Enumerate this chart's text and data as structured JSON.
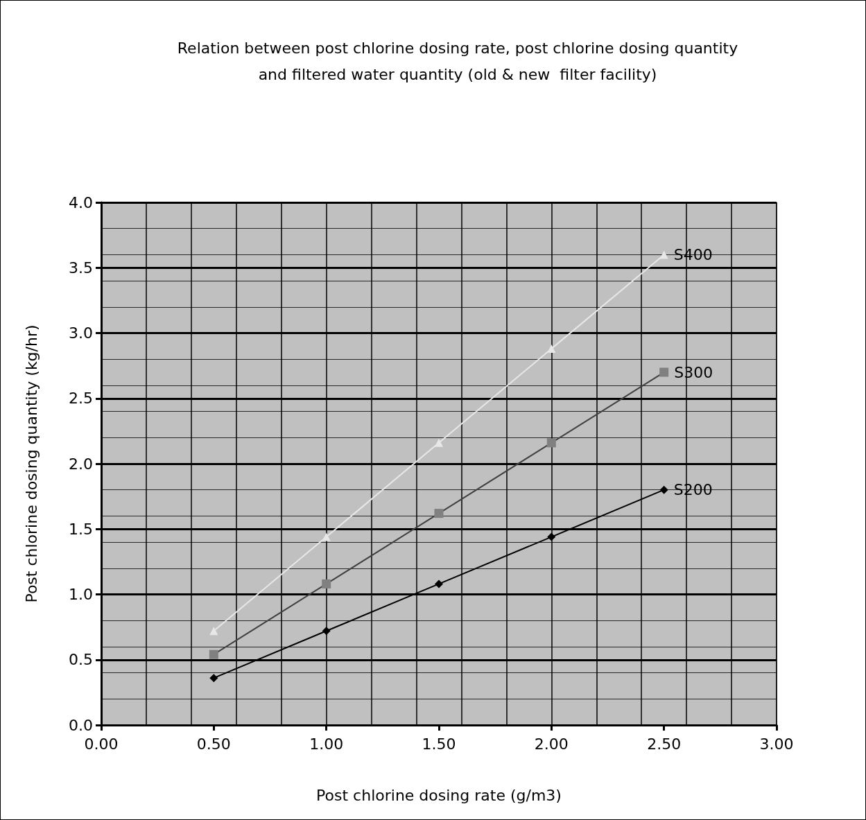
{
  "chart_data": {
    "type": "line",
    "title": "Relation between post chlorine dosing rate, post chlorine dosing quantity\nand filtered water quantity (old & new  filter facility)",
    "xlabel": "Post chlorine dosing rate (g/m3)",
    "ylabel": "Post chlorine dosing quantity (kg/hr)",
    "x": [
      0.5,
      1.0,
      1.5,
      2.0,
      2.5
    ],
    "series": [
      {
        "name": "S400",
        "color": "#e8e8e8",
        "marker": "triangle",
        "values": [
          0.72,
          1.44,
          2.16,
          2.88,
          3.6
        ]
      },
      {
        "name": "S300",
        "color": "#808080",
        "marker": "square",
        "values": [
          0.54,
          1.08,
          1.62,
          2.16,
          2.7
        ]
      },
      {
        "name": "S200",
        "color": "#000000",
        "marker": "diamond",
        "values": [
          0.36,
          0.72,
          1.08,
          1.44,
          1.8
        ]
      }
    ],
    "xlim": [
      0,
      3
    ],
    "xticks": [
      {
        "value": 0,
        "label": "0.00"
      },
      {
        "value": 0.5,
        "label": "0.50"
      },
      {
        "value": 1,
        "label": "1.00"
      },
      {
        "value": 1.5,
        "label": "1.50"
      },
      {
        "value": 2,
        "label": "2.00"
      },
      {
        "value": 2.5,
        "label": "2.50"
      },
      {
        "value": 3,
        "label": "3.00"
      }
    ],
    "ylim": [
      0,
      4
    ],
    "yticks": [
      {
        "value": 0,
        "label": "0.0"
      },
      {
        "value": 0.5,
        "label": "0.5"
      },
      {
        "value": 1,
        "label": "1.0"
      },
      {
        "value": 1.5,
        "label": "1.5"
      },
      {
        "value": 2,
        "label": "2.0"
      },
      {
        "value": 2.5,
        "label": "2.5"
      },
      {
        "value": 3,
        "label": "3.0"
      },
      {
        "value": 3.5,
        "label": "3.5"
      },
      {
        "value": 4,
        "label": "4.0"
      }
    ],
    "grid": true,
    "legend": false,
    "line_style": "solid"
  }
}
